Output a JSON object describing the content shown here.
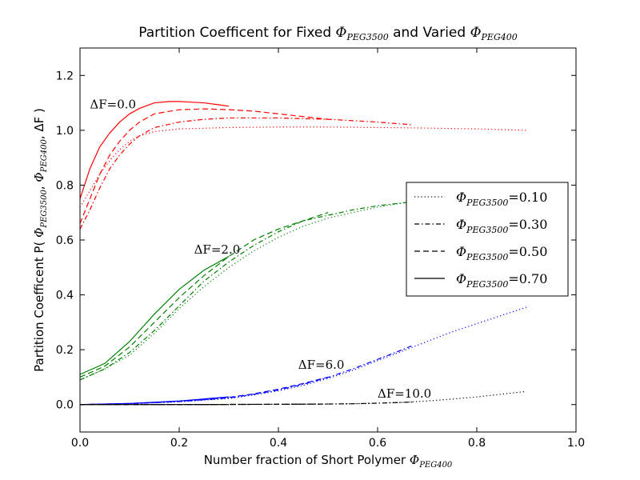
{
  "chart_data": {
    "type": "line",
    "title": {
      "prefix": "Partition Coefficent for Fixed ",
      "phi1": "Φ",
      "sub1": "PEG3500",
      "middle": " and Varied ",
      "phi2": "Φ",
      "sub2": "PEG400"
    },
    "xlabel": {
      "text": "Number fraction of Short Polymer ",
      "phi": "Φ",
      "sub": "PEG400"
    },
    "ylabel": {
      "text": "Partition Coefficent  P( ",
      "phi1": "Φ",
      "sub1": "PEG3500",
      "sep": ", ",
      "phi2": "Φ",
      "sub2": "PEG400",
      "end": ",  ΔF )"
    },
    "xlim": [
      0.0,
      1.0
    ],
    "ylim": [
      -0.1,
      1.3
    ],
    "xticks": [
      {
        "value": 0.0,
        "label": "0.0"
      },
      {
        "value": 0.2,
        "label": "0.2"
      },
      {
        "value": 0.4,
        "label": "0.4"
      },
      {
        "value": 0.6,
        "label": "0.6"
      },
      {
        "value": 0.8,
        "label": "0.8"
      },
      {
        "value": 1.0,
        "label": "1.0"
      }
    ],
    "yticks": [
      {
        "value": 0.0,
        "label": "0.0"
      },
      {
        "value": 0.2,
        "label": "0.2"
      },
      {
        "value": 0.4,
        "label": "0.4"
      },
      {
        "value": 0.6,
        "label": "0.6"
      },
      {
        "value": 0.8,
        "label": "0.8"
      },
      {
        "value": 1.0,
        "label": "1.0"
      },
      {
        "value": 1.2,
        "label": "1.2"
      }
    ],
    "grid": false,
    "legend_position": "center-right",
    "legend": [
      {
        "phi": "Φ",
        "sub": "PEG3500",
        "eq": "=0.10",
        "style": "dotted"
      },
      {
        "phi": "Φ",
        "sub": "PEG3500",
        "eq": "=0.30",
        "style": "dashdot"
      },
      {
        "phi": "Φ",
        "sub": "PEG3500",
        "eq": "=0.50",
        "style": "dashed"
      },
      {
        "phi": "Φ",
        "sub": "PEG3500",
        "eq": "=0.70",
        "style": "solid"
      }
    ],
    "groups": [
      {
        "annotation": "ΔF=0.0",
        "annotation_at": [
          0.02,
          1.08
        ],
        "color": "#ff0000",
        "series": [
          {
            "phi_peg3500": 0.1,
            "style": "dotted",
            "x": [
              0.0,
              0.02,
              0.04,
              0.06,
              0.08,
              0.1,
              0.12,
              0.15,
              0.2,
              0.3,
              0.4,
              0.5,
              0.6,
              0.7,
              0.8,
              0.9
            ],
            "y": [
              0.72,
              0.78,
              0.84,
              0.89,
              0.93,
              0.96,
              0.98,
              0.995,
              1.005,
              1.01,
              1.012,
              1.012,
              1.01,
              1.008,
              1.005,
              1.0
            ]
          },
          {
            "phi_peg3500": 0.3,
            "style": "dashdot",
            "x": [
              0.0,
              0.02,
              0.04,
              0.06,
              0.08,
              0.1,
              0.12,
              0.15,
              0.2,
              0.25,
              0.3,
              0.4,
              0.5,
              0.6,
              0.67
            ],
            "y": [
              0.64,
              0.71,
              0.79,
              0.86,
              0.91,
              0.95,
              0.98,
              1.01,
              1.03,
              1.04,
              1.045,
              1.045,
              1.04,
              1.03,
              1.02
            ]
          },
          {
            "phi_peg3500": 0.5,
            "style": "dashed",
            "x": [
              0.0,
              0.02,
              0.04,
              0.06,
              0.08,
              0.1,
              0.12,
              0.15,
              0.2,
              0.25,
              0.3,
              0.35,
              0.4,
              0.45,
              0.5
            ],
            "y": [
              0.66,
              0.75,
              0.84,
              0.91,
              0.96,
              1.0,
              1.03,
              1.06,
              1.075,
              1.078,
              1.075,
              1.07,
              1.06,
              1.05,
              1.04
            ]
          },
          {
            "phi_peg3500": 0.7,
            "style": "solid",
            "x": [
              0.0,
              0.02,
              0.04,
              0.06,
              0.08,
              0.1,
              0.12,
              0.15,
              0.18,
              0.2,
              0.22,
              0.25,
              0.28,
              0.3
            ],
            "y": [
              0.75,
              0.86,
              0.94,
              0.99,
              1.03,
              1.06,
              1.08,
              1.1,
              1.105,
              1.105,
              1.103,
              1.1,
              1.093,
              1.088
            ]
          }
        ]
      },
      {
        "annotation": "ΔF=2.0",
        "annotation_at": [
          0.23,
          0.55
        ],
        "color": "#008000",
        "series": [
          {
            "phi_peg3500": 0.1,
            "style": "dotted",
            "x": [
              0.0,
              0.05,
              0.1,
              0.15,
              0.2,
              0.25,
              0.3,
              0.35,
              0.4,
              0.45,
              0.5,
              0.55,
              0.6,
              0.65,
              0.7,
              0.75,
              0.8,
              0.85,
              0.9
            ],
            "y": [
              0.09,
              0.13,
              0.18,
              0.26,
              0.35,
              0.43,
              0.5,
              0.56,
              0.61,
              0.65,
              0.68,
              0.7,
              0.72,
              0.735,
              0.745,
              0.75,
              0.755,
              0.758,
              0.76
            ]
          },
          {
            "phi_peg3500": 0.3,
            "style": "dashdot",
            "x": [
              0.0,
              0.05,
              0.1,
              0.15,
              0.2,
              0.25,
              0.3,
              0.35,
              0.4,
              0.45,
              0.5,
              0.55,
              0.6,
              0.65,
              0.67
            ],
            "y": [
              0.09,
              0.13,
              0.19,
              0.27,
              0.36,
              0.45,
              0.52,
              0.58,
              0.63,
              0.67,
              0.69,
              0.71,
              0.725,
              0.735,
              0.74
            ]
          },
          {
            "phi_peg3500": 0.5,
            "style": "dashed",
            "x": [
              0.0,
              0.05,
              0.1,
              0.15,
              0.2,
              0.25,
              0.3,
              0.35,
              0.4,
              0.45,
              0.5
            ],
            "y": [
              0.1,
              0.14,
              0.21,
              0.3,
              0.39,
              0.47,
              0.54,
              0.6,
              0.64,
              0.67,
              0.7
            ]
          },
          {
            "phi_peg3500": 0.7,
            "style": "solid",
            "x": [
              0.0,
              0.05,
              0.1,
              0.15,
              0.2,
              0.25,
              0.3
            ],
            "y": [
              0.11,
              0.15,
              0.23,
              0.33,
              0.42,
              0.49,
              0.54
            ]
          }
        ]
      },
      {
        "annotation": "ΔF=6.0",
        "annotation_at": [
          0.44,
          0.13
        ],
        "color": "#0000ff",
        "series": [
          {
            "phi_peg3500": 0.1,
            "style": "dotted",
            "x": [
              0.0,
              0.1,
              0.2,
              0.3,
              0.35,
              0.4,
              0.45,
              0.5,
              0.55,
              0.6,
              0.65,
              0.7,
              0.75,
              0.8,
              0.85,
              0.9
            ],
            "y": [
              0.0,
              0.003,
              0.01,
              0.022,
              0.035,
              0.05,
              0.07,
              0.095,
              0.125,
              0.16,
              0.195,
              0.23,
              0.265,
              0.295,
              0.325,
              0.355
            ]
          },
          {
            "phi_peg3500": 0.3,
            "style": "dashdot",
            "x": [
              0.0,
              0.1,
              0.2,
              0.3,
              0.35,
              0.4,
              0.45,
              0.5,
              0.55,
              0.6,
              0.65,
              0.67
            ],
            "y": [
              0.0,
              0.003,
              0.011,
              0.024,
              0.037,
              0.053,
              0.074,
              0.099,
              0.13,
              0.165,
              0.2,
              0.215
            ]
          },
          {
            "phi_peg3500": 0.5,
            "style": "dashed",
            "x": [
              0.0,
              0.1,
              0.2,
              0.3,
              0.35,
              0.4,
              0.45,
              0.5
            ],
            "y": [
              0.0,
              0.004,
              0.012,
              0.026,
              0.039,
              0.056,
              0.077,
              0.1
            ]
          },
          {
            "phi_peg3500": 0.7,
            "style": "solid",
            "x": [
              0.0,
              0.1,
              0.2,
              0.3
            ],
            "y": [
              0.0,
              0.004,
              0.013,
              0.028
            ]
          }
        ]
      },
      {
        "annotation": "ΔF=10.0",
        "annotation_at": [
          0.6,
          0.025
        ],
        "color": "#000000",
        "series": [
          {
            "phi_peg3500": 0.1,
            "style": "dotted",
            "x": [
              0.0,
              0.2,
              0.4,
              0.5,
              0.55,
              0.6,
              0.65,
              0.7,
              0.75,
              0.8,
              0.85,
              0.9
            ],
            "y": [
              0.0,
              0.0,
              0.001,
              0.002,
              0.003,
              0.005,
              0.008,
              0.013,
              0.02,
              0.028,
              0.038,
              0.048
            ]
          },
          {
            "phi_peg3500": 0.3,
            "style": "dashdot",
            "x": [
              0.0,
              0.2,
              0.4,
              0.5,
              0.55,
              0.6,
              0.65,
              0.67
            ],
            "y": [
              0.0,
              0.0,
              0.001,
              0.002,
              0.003,
              0.005,
              0.008,
              0.009
            ]
          },
          {
            "phi_peg3500": 0.5,
            "style": "dashed",
            "x": [
              0.0,
              0.2,
              0.4,
              0.5
            ],
            "y": [
              0.0,
              0.0,
              0.001,
              0.002
            ]
          },
          {
            "phi_peg3500": 0.7,
            "style": "solid",
            "x": [
              0.0,
              0.1,
              0.2,
              0.3
            ],
            "y": [
              0.0,
              0.0,
              0.0,
              0.0
            ]
          }
        ]
      }
    ]
  }
}
